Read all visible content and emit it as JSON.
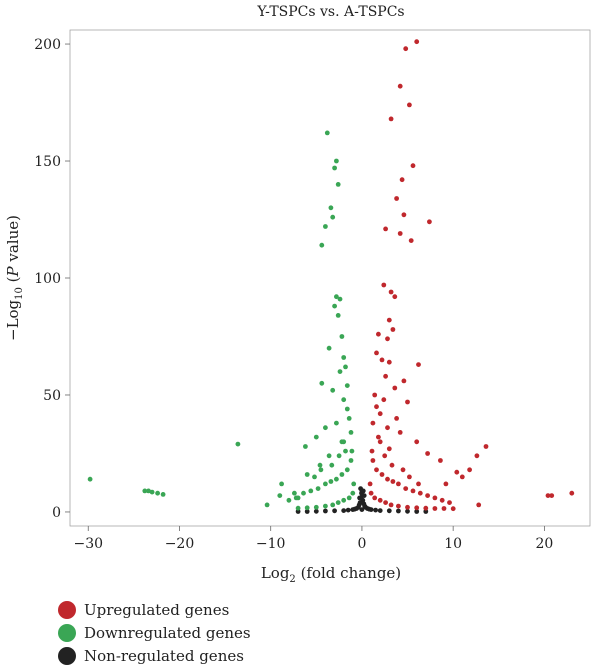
{
  "chart_data": {
    "type": "scatter",
    "title": "Y-TSPCs vs. A-TSPCs",
    "xlabel": {
      "main": "Log",
      "sub": "2",
      "rest": " (fold change)"
    },
    "ylabel": {
      "pre": "−Log",
      "sub": "10",
      "mid": " (",
      "ital": "P",
      "post": " value)"
    },
    "xlim": [
      -32,
      25
    ],
    "ylim": [
      -6,
      206
    ],
    "xticks": [
      -30,
      -20,
      -10,
      0,
      10,
      20
    ],
    "yticks": [
      0,
      50,
      100,
      150,
      200
    ],
    "colors": {
      "up": "#c0282d",
      "down": "#3aa655",
      "non": "#222222"
    },
    "series": [
      {
        "name": "Upregulated genes",
        "key": "up",
        "points": [
          [
            6.0,
            201
          ],
          [
            4.8,
            198
          ],
          [
            4.2,
            182
          ],
          [
            5.2,
            174
          ],
          [
            3.2,
            168
          ],
          [
            5.6,
            148
          ],
          [
            4.4,
            142
          ],
          [
            3.8,
            134
          ],
          [
            4.6,
            127
          ],
          [
            7.4,
            124
          ],
          [
            2.6,
            121
          ],
          [
            4.2,
            119
          ],
          [
            5.4,
            116
          ],
          [
            2.4,
            97
          ],
          [
            3.2,
            94
          ],
          [
            3.6,
            92
          ],
          [
            3.0,
            82
          ],
          [
            3.4,
            78
          ],
          [
            1.8,
            76
          ],
          [
            2.8,
            74
          ],
          [
            1.6,
            68
          ],
          [
            2.2,
            65
          ],
          [
            3.0,
            64
          ],
          [
            6.2,
            63
          ],
          [
            2.6,
            58
          ],
          [
            4.6,
            56
          ],
          [
            3.6,
            53
          ],
          [
            1.4,
            50
          ],
          [
            2.4,
            48
          ],
          [
            5.0,
            47
          ],
          [
            1.6,
            45
          ],
          [
            2.0,
            42
          ],
          [
            3.8,
            40
          ],
          [
            1.2,
            38
          ],
          [
            2.8,
            36
          ],
          [
            4.2,
            34
          ],
          [
            1.8,
            32
          ],
          [
            6.0,
            30
          ],
          [
            13.6,
            28
          ],
          [
            12.6,
            24
          ],
          [
            3.0,
            27
          ],
          [
            7.2,
            25
          ],
          [
            11.8,
            18
          ],
          [
            10.4,
            17
          ],
          [
            8.6,
            22
          ],
          [
            9.2,
            12
          ],
          [
            11.0,
            15
          ],
          [
            12.8,
            3
          ],
          [
            20.4,
            7
          ],
          [
            20.8,
            7
          ],
          [
            23.0,
            8
          ],
          [
            1.2,
            22
          ],
          [
            1.6,
            18
          ],
          [
            2.2,
            16
          ],
          [
            2.8,
            14
          ],
          [
            3.4,
            13
          ],
          [
            4.0,
            12
          ],
          [
            4.8,
            10
          ],
          [
            5.6,
            9
          ],
          [
            6.4,
            8
          ],
          [
            7.2,
            7
          ],
          [
            8.0,
            6
          ],
          [
            8.8,
            5
          ],
          [
            9.6,
            4
          ],
          [
            0.9,
            12
          ],
          [
            1.0,
            8
          ],
          [
            1.4,
            6
          ],
          [
            2.0,
            5
          ],
          [
            2.6,
            4
          ],
          [
            3.2,
            3
          ],
          [
            4.0,
            2.5
          ],
          [
            5.0,
            2
          ],
          [
            6.0,
            1.8
          ],
          [
            7.0,
            1.6
          ],
          [
            8.0,
            1.5
          ],
          [
            9.0,
            1.5
          ],
          [
            10.0,
            1.4
          ],
          [
            1.1,
            26
          ],
          [
            2.0,
            30
          ],
          [
            2.5,
            24
          ],
          [
            3.3,
            20
          ],
          [
            4.5,
            18
          ],
          [
            5.2,
            15
          ],
          [
            6.2,
            12
          ]
        ]
      },
      {
        "name": "Downregulated genes",
        "key": "down",
        "points": [
          [
            -3.8,
            162
          ],
          [
            -2.8,
            150
          ],
          [
            -3.0,
            147
          ],
          [
            -2.6,
            140
          ],
          [
            -3.4,
            130
          ],
          [
            -3.2,
            126
          ],
          [
            -4.0,
            122
          ],
          [
            -4.4,
            114
          ],
          [
            -2.8,
            92
          ],
          [
            -2.4,
            91
          ],
          [
            -3.0,
            88
          ],
          [
            -2.6,
            84
          ],
          [
            -2.2,
            75
          ],
          [
            -3.6,
            70
          ],
          [
            -2.0,
            66
          ],
          [
            -1.8,
            62
          ],
          [
            -2.4,
            60
          ],
          [
            -4.4,
            55
          ],
          [
            -1.6,
            54
          ],
          [
            -3.2,
            52
          ],
          [
            -2.0,
            48
          ],
          [
            -1.6,
            44
          ],
          [
            -1.4,
            40
          ],
          [
            -2.8,
            38
          ],
          [
            -4.0,
            36
          ],
          [
            -1.2,
            34
          ],
          [
            -5.0,
            32
          ],
          [
            -13.6,
            29
          ],
          [
            -2.2,
            30
          ],
          [
            -6.2,
            28
          ],
          [
            -1.8,
            26
          ],
          [
            -3.6,
            24
          ],
          [
            -4.6,
            20
          ],
          [
            -6.0,
            16
          ],
          [
            -29.8,
            14
          ],
          [
            -8.8,
            12
          ],
          [
            -23.8,
            9
          ],
          [
            -23.4,
            9
          ],
          [
            -23.0,
            8.5
          ],
          [
            -22.4,
            8
          ],
          [
            -21.8,
            7.5
          ],
          [
            -10.4,
            3
          ],
          [
            -9.0,
            7
          ],
          [
            -7.4,
            8
          ],
          [
            -7.0,
            6
          ],
          [
            -1.2,
            22
          ],
          [
            -1.6,
            18
          ],
          [
            -2.2,
            16
          ],
          [
            -2.8,
            14
          ],
          [
            -3.4,
            13
          ],
          [
            -4.0,
            12
          ],
          [
            -4.8,
            10
          ],
          [
            -5.6,
            9
          ],
          [
            -6.4,
            8
          ],
          [
            -7.2,
            6
          ],
          [
            -8.0,
            5
          ],
          [
            -0.9,
            12
          ],
          [
            -1.0,
            8
          ],
          [
            -1.4,
            6
          ],
          [
            -2.0,
            5
          ],
          [
            -2.6,
            4
          ],
          [
            -3.2,
            3
          ],
          [
            -4.0,
            2.5
          ],
          [
            -5.0,
            2
          ],
          [
            -6.0,
            1.8
          ],
          [
            -7.0,
            1.6
          ],
          [
            -1.1,
            26
          ],
          [
            -2.0,
            30
          ],
          [
            -2.5,
            24
          ],
          [
            -3.3,
            20
          ],
          [
            -4.5,
            18
          ],
          [
            -5.2,
            15
          ]
        ]
      },
      {
        "name": "Non-regulated genes",
        "key": "non",
        "points": [
          [
            -0.1,
            6
          ],
          [
            0.1,
            5
          ],
          [
            -0.2,
            4
          ],
          [
            0.2,
            3.5
          ],
          [
            -0.3,
            3
          ],
          [
            0.3,
            2.5
          ],
          [
            -0.4,
            2
          ],
          [
            0.4,
            2
          ],
          [
            -0.6,
            1.5
          ],
          [
            0.6,
            1.5
          ],
          [
            -0.8,
            1.2
          ],
          [
            0.8,
            1.2
          ],
          [
            -1.0,
            1
          ],
          [
            1.0,
            1
          ],
          [
            -1.5,
            0.8
          ],
          [
            1.5,
            0.8
          ],
          [
            -2.0,
            0.6
          ],
          [
            2.0,
            0.6
          ],
          [
            -3.0,
            0.5
          ],
          [
            3.0,
            0.5
          ],
          [
            -4.0,
            0.4
          ],
          [
            4.0,
            0.4
          ],
          [
            -5.0,
            0.3
          ],
          [
            5.0,
            0.3
          ],
          [
            -6.0,
            0.2
          ],
          [
            6.0,
            0.2
          ],
          [
            -7.0,
            0.2
          ],
          [
            7.0,
            0.2
          ],
          [
            0.0,
            1
          ],
          [
            0.05,
            7
          ],
          [
            -0.05,
            8
          ],
          [
            0.0,
            9
          ],
          [
            -0.15,
            10
          ],
          [
            0.15,
            9
          ],
          [
            -0.25,
            6
          ],
          [
            0.25,
            7
          ]
        ]
      }
    ]
  }
}
